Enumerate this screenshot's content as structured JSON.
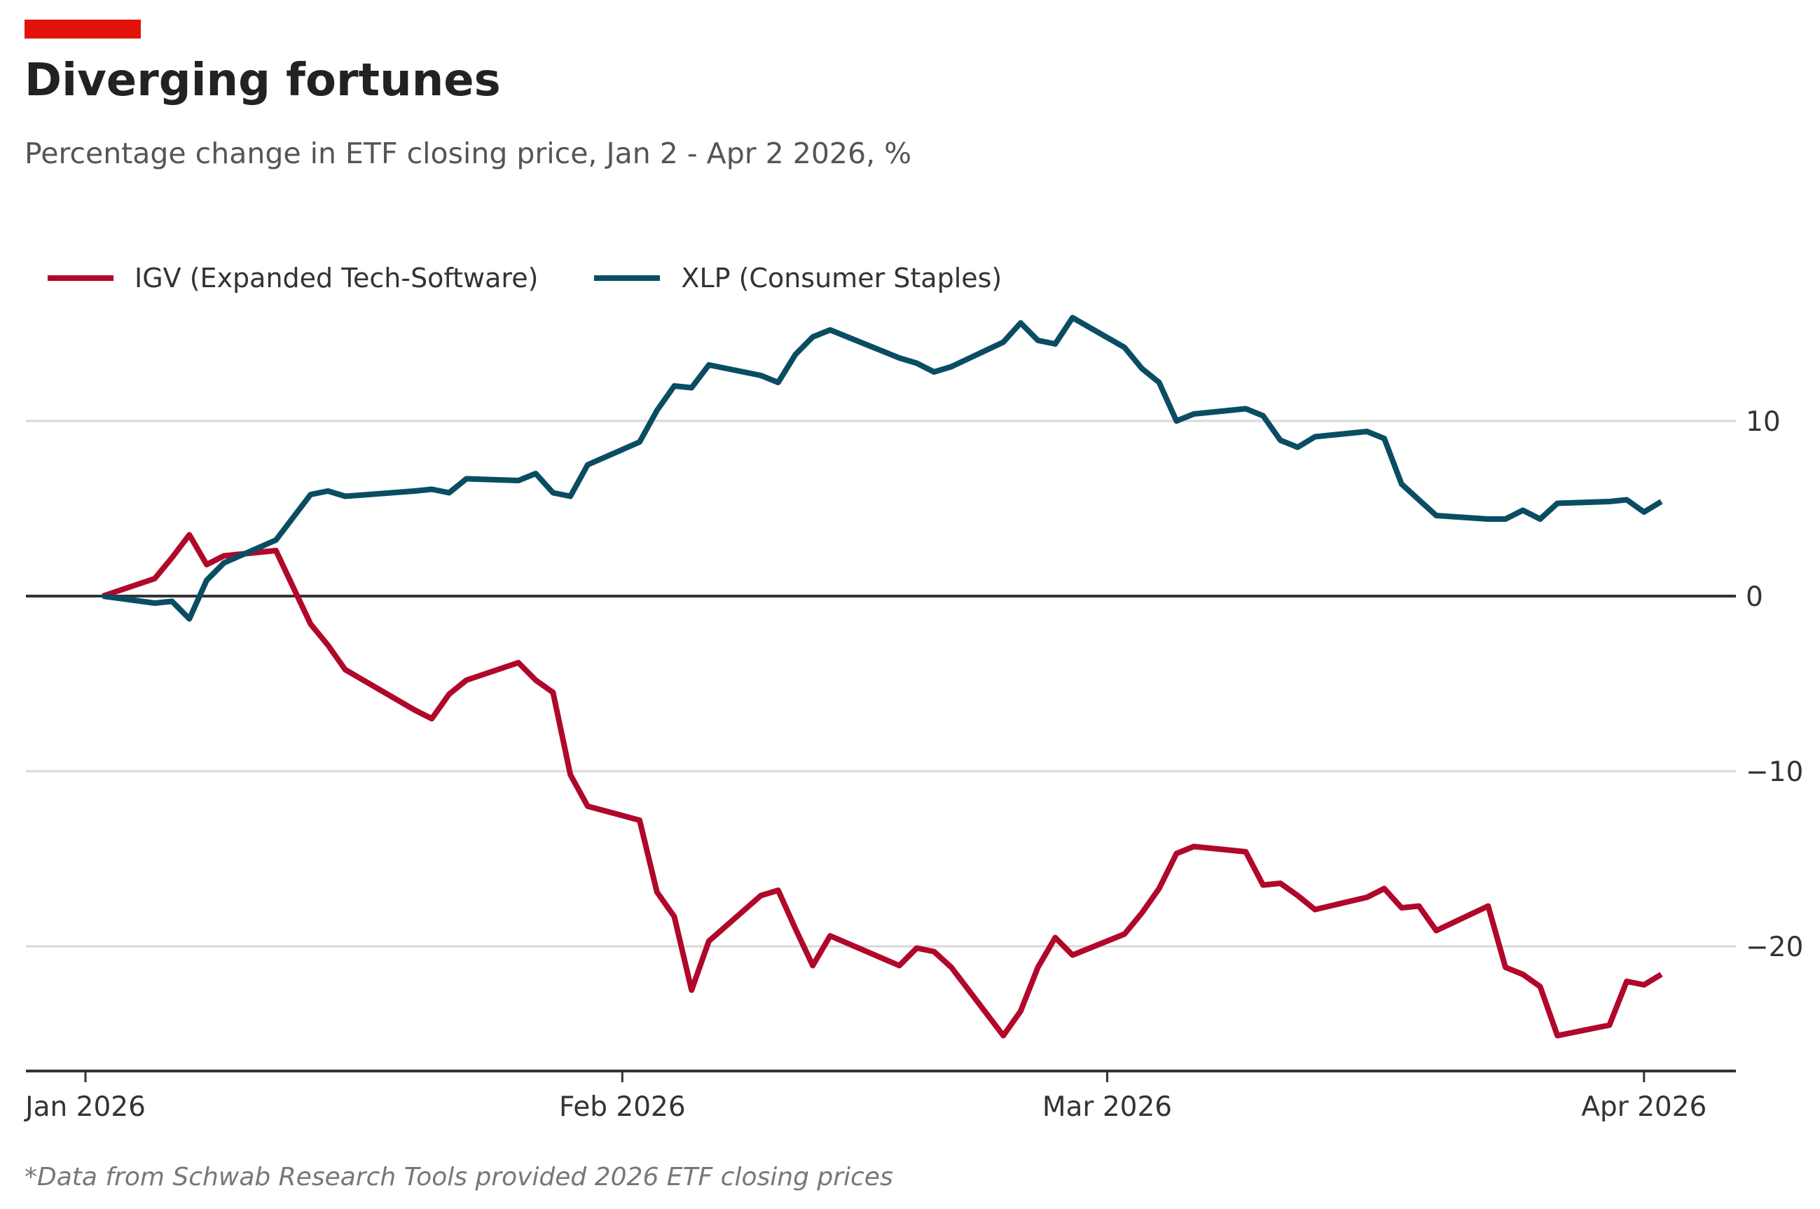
{
  "header": {
    "title": "Diverging fortunes",
    "subtitle": "Percentage change in ETF closing price, Jan 2 - Apr 2 2026, %",
    "accent_color": "#e3120b"
  },
  "footer": "*Data from Schwab Research Tools provided 2026 ETF closing prices",
  "chart_data": {
    "type": "line",
    "title": "Diverging fortunes",
    "ylabel": "%",
    "xlabel": "",
    "ylim": [
      -27,
      18
    ],
    "yticks": [
      10,
      0,
      -10,
      -20
    ],
    "ytick_labels": [
      "10",
      "0",
      "−10",
      "−20"
    ],
    "xticks": [
      {
        "date": "2026-01-01",
        "label": "Jan 2026"
      },
      {
        "date": "2026-02-01",
        "label": "Feb 2026"
      },
      {
        "date": "2026-03-01",
        "label": "Mar 2026"
      },
      {
        "date": "2026-04-01",
        "label": "Apr 2026"
      }
    ],
    "legend_placement": "top-left",
    "x": [
      "2026-01-02",
      "2026-01-05",
      "2026-01-06",
      "2026-01-07",
      "2026-01-08",
      "2026-01-09",
      "2026-01-12",
      "2026-01-13",
      "2026-01-14",
      "2026-01-15",
      "2026-01-16",
      "2026-01-20",
      "2026-01-21",
      "2026-01-22",
      "2026-01-23",
      "2026-01-26",
      "2026-01-27",
      "2026-01-28",
      "2026-01-29",
      "2026-01-30",
      "2026-02-02",
      "2026-02-03",
      "2026-02-04",
      "2026-02-05",
      "2026-02-06",
      "2026-02-09",
      "2026-02-10",
      "2026-02-11",
      "2026-02-12",
      "2026-02-13",
      "2026-02-17",
      "2026-02-18",
      "2026-02-19",
      "2026-02-20",
      "2026-02-23",
      "2026-02-24",
      "2026-02-25",
      "2026-02-26",
      "2026-02-27",
      "2026-03-02",
      "2026-03-03",
      "2026-03-04",
      "2026-03-05",
      "2026-03-06",
      "2026-03-09",
      "2026-03-10",
      "2026-03-11",
      "2026-03-12",
      "2026-03-13",
      "2026-03-16",
      "2026-03-17",
      "2026-03-18",
      "2026-03-19",
      "2026-03-20",
      "2026-03-23",
      "2026-03-24",
      "2026-03-25",
      "2026-03-26",
      "2026-03-27",
      "2026-03-30",
      "2026-03-31",
      "2026-04-01",
      "2026-04-02"
    ],
    "series": [
      {
        "name": "IGV (Expanded Tech-Software)",
        "color": "#b0072a",
        "values": [
          0,
          1.0,
          2.2,
          3.5,
          1.8,
          2.3,
          2.6,
          0.5,
          -1.6,
          -2.8,
          -4.2,
          -6.5,
          -7.0,
          -5.6,
          -4.8,
          -3.8,
          -4.8,
          -5.5,
          -10.2,
          -12.0,
          -12.8,
          -16.9,
          -18.3,
          -22.5,
          -19.7,
          -17.1,
          -16.8,
          -19.0,
          -21.1,
          -19.4,
          -21.1,
          -20.1,
          -20.3,
          -21.2,
          -25.1,
          -23.7,
          -21.2,
          -19.5,
          -20.5,
          -19.3,
          -18.1,
          -16.7,
          -14.7,
          -14.3,
          -14.6,
          -16.5,
          -16.4,
          -17.1,
          -17.9,
          -17.2,
          -16.7,
          -17.8,
          -17.7,
          -19.1,
          -17.7,
          -21.2,
          -21.6,
          -22.3,
          -25.1,
          -24.5,
          -22.0,
          -22.2,
          -21.6
        ]
      },
      {
        "name": "XLP (Consumer Staples)",
        "color": "#0a4d63",
        "values": [
          0,
          -0.4,
          -0.3,
          -1.3,
          0.9,
          1.9,
          3.2,
          4.5,
          5.8,
          6.0,
          5.7,
          6.0,
          6.1,
          5.9,
          6.7,
          6.6,
          7.0,
          5.9,
          5.7,
          7.5,
          8.8,
          10.6,
          12.0,
          11.9,
          13.2,
          12.6,
          12.2,
          13.8,
          14.8,
          15.2,
          13.6,
          13.3,
          12.8,
          13.1,
          14.5,
          15.6,
          14.6,
          14.4,
          15.9,
          14.2,
          13.0,
          12.2,
          10.0,
          10.4,
          10.7,
          10.3,
          8.9,
          8.5,
          9.1,
          9.4,
          9.0,
          6.4,
          5.5,
          4.6,
          4.4,
          4.4,
          4.9,
          4.4,
          5.3,
          5.4,
          5.5,
          4.8,
          5.4
        ]
      }
    ]
  }
}
